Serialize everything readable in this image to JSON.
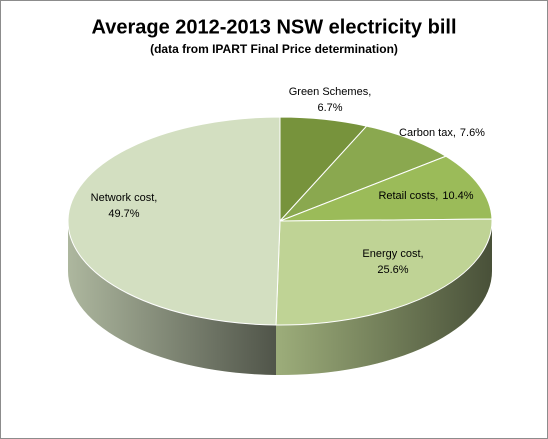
{
  "chart_data": {
    "type": "pie3d",
    "title": "Average 2012-2013 NSW electricity bill",
    "subtitle": "(data from IPART Final Price determination)",
    "categories": [
      "Green Schemes,",
      "Carbon tax,",
      "Retail costs,",
      "Energy cost,",
      "Network cost,"
    ],
    "values": [
      6.7,
      7.6,
      10.4,
      25.6,
      49.7
    ],
    "value_labels": [
      "6.7%",
      "7.6%",
      "10.4%",
      "25.6%",
      "49.7%"
    ],
    "colors": [
      "#77933c",
      "#8aa84f",
      "#9bbb59",
      "#bfd395",
      "#d3dfc1"
    ]
  }
}
